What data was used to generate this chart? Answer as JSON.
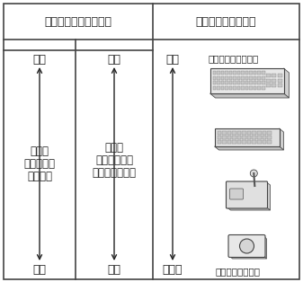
{
  "header_left": "残存している身体機能",
  "header_right": "操作できるキーの数",
  "col1_top": "広い",
  "col1_mid_line1": "可動域",
  "col1_mid_line2": "（操作可能",
  "col1_mid_line3": "な範囲）",
  "col1_bot": "狭い",
  "col2_top": "高い",
  "col2_mid_line1": "巧緻性",
  "col2_mid_line2": "（力と時間の",
  "col2_mid_line3": "コントロール）",
  "col2_bot": "低い",
  "col3_top": "多い",
  "col3_bot": "少ない",
  "right_top_label": "［標準キーボード］",
  "right_bot_label": "［単一スイッチ］",
  "bg_color": "#ffffff",
  "text_color": "#222222",
  "border_color": "#444444"
}
